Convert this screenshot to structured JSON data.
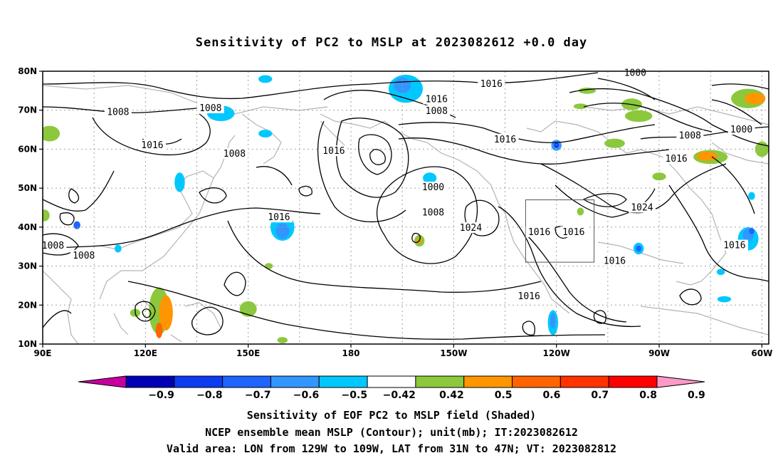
{
  "title": "Sensitivity of PC2 to MSLP at 2023082612 +0.0 day",
  "map": {
    "lat_labels": [
      "80N",
      "70N",
      "60N",
      "50N",
      "40N",
      "30N",
      "20N",
      "10N"
    ],
    "lon_labels": [
      "90E",
      "120E",
      "150E",
      "180",
      "150W",
      "120W",
      "90W",
      "60W"
    ],
    "lon_range": [
      90,
      302
    ],
    "lat_range": [
      10,
      80
    ],
    "valid_box": {
      "lon_west": "129W",
      "lon_east": "109W",
      "lat_south": "31N",
      "lat_north": "47N"
    },
    "contour_labels": [
      {
        "text": "1016",
        "lon": 221,
        "lat": 76.7
      },
      {
        "text": "1000",
        "lon": 263,
        "lat": 79.5
      },
      {
        "text": "1008",
        "lon": 112,
        "lat": 69.5
      },
      {
        "text": "1008",
        "lon": 139,
        "lat": 70.5
      },
      {
        "text": "1016",
        "lon": 205,
        "lat": 72.8
      },
      {
        "text": "1008",
        "lon": 205,
        "lat": 69.8
      },
      {
        "text": "1016",
        "lon": 122,
        "lat": 61.0
      },
      {
        "text": "1008",
        "lon": 146,
        "lat": 58.8
      },
      {
        "text": "1016",
        "lon": 175,
        "lat": 59.5
      },
      {
        "text": "1016",
        "lon": 225,
        "lat": 62.5
      },
      {
        "text": "1008",
        "lon": 279,
        "lat": 63.5
      },
      {
        "text": "1000",
        "lon": 294,
        "lat": 65.0
      },
      {
        "text": "1016",
        "lon": 275,
        "lat": 57.5
      },
      {
        "text": "1000",
        "lon": 204,
        "lat": 50.2
      },
      {
        "text": "1008",
        "lon": 204,
        "lat": 43.7
      },
      {
        "text": "1024",
        "lon": 265,
        "lat": 45.0
      },
      {
        "text": "1016",
        "lon": 159,
        "lat": 42.5
      },
      {
        "text": "1024",
        "lon": 215,
        "lat": 39.8
      },
      {
        "text": "1016",
        "lon": 235,
        "lat": 38.7
      },
      {
        "text": "1016",
        "lon": 245,
        "lat": 38.7
      },
      {
        "text": "1008",
        "lon": 93,
        "lat": 35.2
      },
      {
        "text": "1008",
        "lon": 102,
        "lat": 32.7
      },
      {
        "text": "1016",
        "lon": 292,
        "lat": 35.3
      },
      {
        "text": "1016",
        "lon": 257,
        "lat": 31.3
      },
      {
        "text": "1016",
        "lon": 232,
        "lat": 22.2
      }
    ],
    "shaded_patches": [
      {
        "lon": 196,
        "lat": 75.5,
        "rx": 5,
        "ry": 3.6,
        "level": -0.5
      },
      {
        "lon": 195,
        "lat": 76.4,
        "rx": 2.5,
        "ry": 2,
        "level": -0.6
      },
      {
        "lon": 142,
        "lat": 69.2,
        "rx": 4,
        "ry": 2,
        "level": -0.5
      },
      {
        "lon": 155,
        "lat": 78.0,
        "rx": 2,
        "ry": 1,
        "level": -0.5
      },
      {
        "lon": 155,
        "lat": 64.0,
        "rx": 2,
        "ry": 1,
        "level": -0.5
      },
      {
        "lon": 92,
        "lat": 64.0,
        "rx": 2,
        "ry": 1.5,
        "level": 0.6
      },
      {
        "lon": 92,
        "lat": 64.0,
        "rx": 3,
        "ry": 2,
        "level": 0.5
      },
      {
        "lon": 130,
        "lat": 51.5,
        "rx": 1.5,
        "ry": 2.5,
        "level": -0.5
      },
      {
        "lon": 160,
        "lat": 40.0,
        "rx": 3.5,
        "ry": 3.5,
        "level": -0.5
      },
      {
        "lon": 160,
        "lat": 39.0,
        "rx": 2,
        "ry": 2,
        "level": -0.6
      },
      {
        "lon": 203,
        "lat": 52.6,
        "rx": 2,
        "ry": 1.4,
        "level": -0.5
      },
      {
        "lon": 200,
        "lat": 36.5,
        "rx": 1.5,
        "ry": 1.5,
        "level": 0.5
      },
      {
        "lon": 200,
        "lat": 36.5,
        "rx": 0.7,
        "ry": 0.7,
        "level": 0.6
      },
      {
        "lon": 240,
        "lat": 61.0,
        "rx": 1.5,
        "ry": 1.4,
        "level": -0.6
      },
      {
        "lon": 240,
        "lat": 61.0,
        "rx": 0.7,
        "ry": 0.7,
        "level": -0.8
      },
      {
        "lon": 257,
        "lat": 61.5,
        "rx": 3,
        "ry": 1.2,
        "level": 0.5
      },
      {
        "lon": 262,
        "lat": 71.5,
        "rx": 3,
        "ry": 1.5,
        "level": 0.5
      },
      {
        "lon": 264,
        "lat": 68.5,
        "rx": 4,
        "ry": 1.5,
        "level": 0.5
      },
      {
        "lon": 285,
        "lat": 58.0,
        "rx": 5,
        "ry": 1.8,
        "level": 0.5
      },
      {
        "lon": 284,
        "lat": 58.2,
        "rx": 3,
        "ry": 1.2,
        "level": 0.6
      },
      {
        "lon": 296,
        "lat": 73.0,
        "rx": 5,
        "ry": 2.5,
        "level": 0.5
      },
      {
        "lon": 298,
        "lat": 73.0,
        "rx": 3,
        "ry": 1.5,
        "level": 0.6
      },
      {
        "lon": 300,
        "lat": 60.0,
        "rx": 2,
        "ry": 2,
        "level": 0.5
      },
      {
        "lon": 270,
        "lat": 53.0,
        "rx": 2,
        "ry": 1,
        "level": 0.5
      },
      {
        "lon": 249,
        "lat": 75.0,
        "rx": 2.5,
        "ry": 0.8,
        "level": 0.5
      },
      {
        "lon": 247,
        "lat": 71.0,
        "rx": 2,
        "ry": 0.7,
        "level": 0.5
      },
      {
        "lon": 124,
        "lat": 18.5,
        "rx": 3,
        "ry": 6,
        "level": 0.5
      },
      {
        "lon": 126,
        "lat": 18.0,
        "rx": 2,
        "ry": 4.5,
        "level": 0.6
      },
      {
        "lon": 124,
        "lat": 13.5,
        "rx": 1,
        "ry": 2,
        "level": 0.7
      },
      {
        "lon": 117,
        "lat": 18.0,
        "rx": 1.5,
        "ry": 1,
        "level": 0.5
      },
      {
        "lon": 150,
        "lat": 19.0,
        "rx": 2.5,
        "ry": 2,
        "level": 0.5
      },
      {
        "lon": 156,
        "lat": 30.0,
        "rx": 1.2,
        "ry": 0.8,
        "level": 0.5
      },
      {
        "lon": 160,
        "lat": 11.0,
        "rx": 1.5,
        "ry": 0.8,
        "level": 0.5
      },
      {
        "lon": 247,
        "lat": 44.0,
        "rx": 1,
        "ry": 1,
        "level": 0.5
      },
      {
        "lon": 239,
        "lat": 15.5,
        "rx": 1.5,
        "ry": 3.2,
        "level": -0.5
      },
      {
        "lon": 239,
        "lat": 16.0,
        "rx": 0.8,
        "ry": 2,
        "level": -0.6
      },
      {
        "lon": 264,
        "lat": 34.5,
        "rx": 1.5,
        "ry": 1.5,
        "level": -0.5
      },
      {
        "lon": 264,
        "lat": 34.5,
        "rx": 0.8,
        "ry": 0.8,
        "level": -0.7
      },
      {
        "lon": 296,
        "lat": 37.0,
        "rx": 3,
        "ry": 3,
        "level": -0.5
      },
      {
        "lon": 296,
        "lat": 38.0,
        "rx": 1.6,
        "ry": 1.6,
        "level": -0.6
      },
      {
        "lon": 297,
        "lat": 39.0,
        "rx": 0.8,
        "ry": 0.8,
        "level": -0.7
      },
      {
        "lon": 289,
        "lat": 21.5,
        "rx": 2,
        "ry": 0.8,
        "level": -0.5
      },
      {
        "lon": 288,
        "lat": 28.5,
        "rx": 1.2,
        "ry": 0.8,
        "level": -0.5
      },
      {
        "lon": 297,
        "lat": 48.0,
        "rx": 1,
        "ry": 1,
        "level": -0.5
      },
      {
        "lon": 100,
        "lat": 40.5,
        "rx": 1,
        "ry": 1,
        "level": -0.7
      },
      {
        "lon": 90.5,
        "lat": 43.0,
        "rx": 1.5,
        "ry": 1.5,
        "level": 0.5
      },
      {
        "lon": 112,
        "lat": 34.5,
        "rx": 1,
        "ry": 1,
        "level": -0.5
      }
    ]
  },
  "colorbar": {
    "labels": [
      "−0.9",
      "−0.8",
      "−0.7",
      "−0.6",
      "−0.5",
      "−0.42",
      "0.42",
      "0.5",
      "0.6",
      "0.7",
      "0.8",
      "0.9"
    ],
    "colors": [
      "#0000b4",
      "#0b3cf0",
      "#1e64ff",
      "#3296ff",
      "#00c8ff",
      "#ffffff",
      "#8cc83c",
      "#ff9600",
      "#ff6400",
      "#ff3200",
      "#ff0000"
    ],
    "low_end_color": "#c800a0",
    "high_end_color": "#ff9ac8"
  },
  "footer": {
    "line1": "Sensitivity of EOF PC2 to MSLP field (Shaded)",
    "line2": "NCEP ensemble mean MSLP (Contour); unit(mb); IT:2023082612",
    "line3": "Valid area: LON from 129W to 109W, LAT from 31N to 47N; VT: 2023082812"
  }
}
